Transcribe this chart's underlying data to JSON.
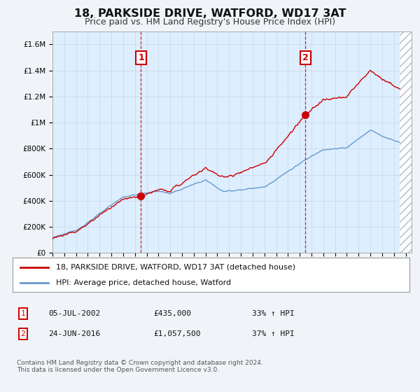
{
  "title": "18, PARKSIDE DRIVE, WATFORD, WD17 3AT",
  "subtitle": "Price paid vs. HM Land Registry's House Price Index (HPI)",
  "title_fontsize": 11.5,
  "subtitle_fontsize": 9,
  "bg_color": "#f0f4f8",
  "plot_bg_color": "#ddeeff",
  "red_line_color": "#cc0000",
  "blue_line_color": "#6699cc",
  "transaction_vline_color": "#cc0000",
  "ylim": [
    0,
    1700000
  ],
  "xlim_start": 1995.0,
  "xlim_end": 2025.5,
  "data_end_year": 2024.5,
  "yticks": [
    0,
    200000,
    400000,
    600000,
    800000,
    1000000,
    1200000,
    1400000,
    1600000
  ],
  "ytick_labels": [
    "£0",
    "£200K",
    "£400K",
    "£600K",
    "£800K",
    "£1M",
    "£1.2M",
    "£1.4M",
    "£1.6M"
  ],
  "xticks": [
    1995,
    1996,
    1997,
    1998,
    1999,
    2000,
    2001,
    2002,
    2003,
    2004,
    2005,
    2006,
    2007,
    2008,
    2009,
    2010,
    2011,
    2012,
    2013,
    2014,
    2015,
    2016,
    2017,
    2018,
    2019,
    2020,
    2021,
    2022,
    2023,
    2024,
    2025
  ],
  "transaction1_year": 2002.52,
  "transaction1_price": 435000,
  "transaction2_year": 2016.48,
  "transaction2_price": 1057500,
  "legend_line1": "18, PARKSIDE DRIVE, WATFORD, WD17 3AT (detached house)",
  "legend_line2": "HPI: Average price, detached house, Watford",
  "table_rows": [
    {
      "num": "1",
      "date": "05-JUL-2002",
      "price": "£435,000",
      "hpi": "33% ↑ HPI"
    },
    {
      "num": "2",
      "date": "24-JUN-2016",
      "price": "£1,057,500",
      "hpi": "37% ↑ HPI"
    }
  ],
  "footer": "Contains HM Land Registry data © Crown copyright and database right 2024.\nThis data is licensed under the Open Government Licence v3.0."
}
